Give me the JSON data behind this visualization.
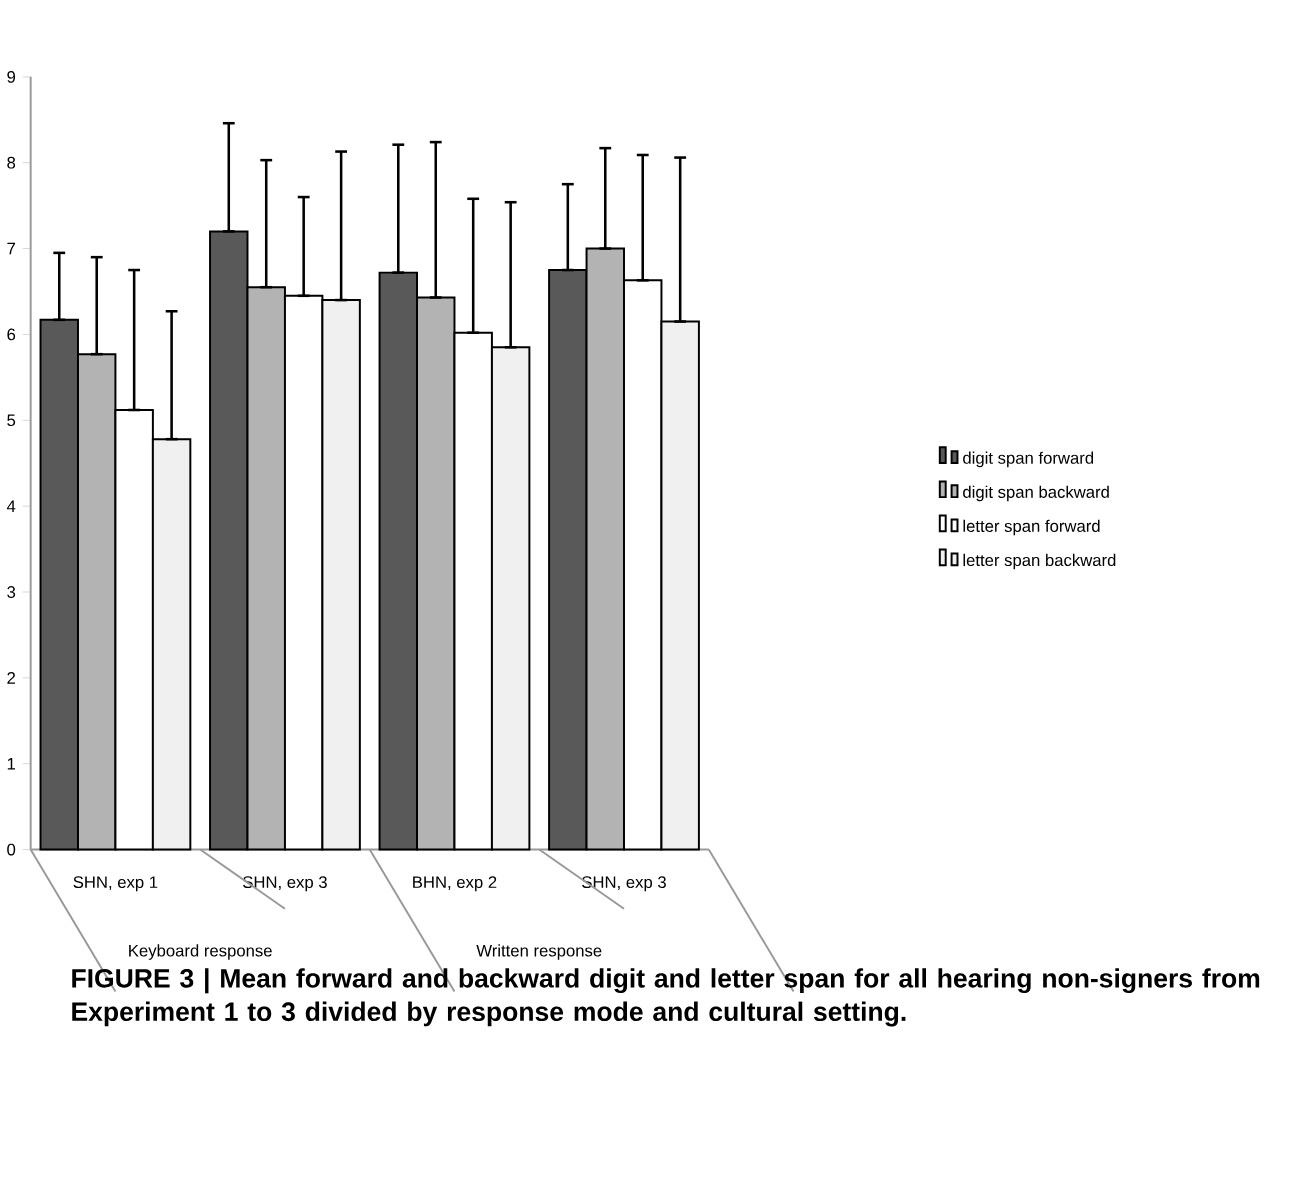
{
  "chart_data": {
    "type": "bar",
    "categories": [
      "SHN, exp 1",
      "SHN, exp 3",
      "BHN, exp 2",
      "SHN, exp 3"
    ],
    "series": [
      {
        "name": "digit span forward",
        "color": "#595959",
        "values": [
          6.17,
          7.2,
          6.72,
          6.75
        ],
        "errors": [
          [
            6.17,
            6.95
          ],
          [
            7.2,
            8.46
          ],
          [
            6.72,
            8.21
          ],
          [
            6.75,
            7.75
          ]
        ]
      },
      {
        "name": "digit span backward",
        "color": "#b3b3b3",
        "values": [
          5.77,
          6.55,
          6.43,
          7.0
        ],
        "errors": [
          [
            5.77,
            6.9
          ],
          [
            6.55,
            8.03
          ],
          [
            6.43,
            8.24
          ],
          [
            7.0,
            8.17
          ]
        ]
      },
      {
        "name": "letter span  forward",
        "color": "#ffffff",
        "values": [
          5.12,
          6.45,
          6.02,
          6.63
        ],
        "errors": [
          [
            5.12,
            6.75
          ],
          [
            6.45,
            7.6
          ],
          [
            6.02,
            7.58
          ],
          [
            6.63,
            8.09
          ]
        ]
      },
      {
        "name": "letter span backward",
        "color": "#f0f0f0",
        "values": [
          4.78,
          6.4,
          5.85,
          6.15
        ],
        "errors": [
          [
            4.78,
            6.27
          ],
          [
            6.4,
            8.13
          ],
          [
            5.85,
            7.54
          ],
          [
            6.15,
            8.06
          ]
        ]
      }
    ],
    "ylim": [
      0,
      9
    ],
    "yticks": [
      0,
      1,
      2,
      3,
      4,
      5,
      6,
      7,
      8,
      9
    ],
    "grid": false,
    "legend": "right",
    "annotations": [
      "Keyboard response",
      "Written response",
      "FIGURE 3 | Mean forward and backward digit and letter span for all hearing non-signers from Experiment 1 to 3 divided by response mode and cultural setting."
    ]
  }
}
